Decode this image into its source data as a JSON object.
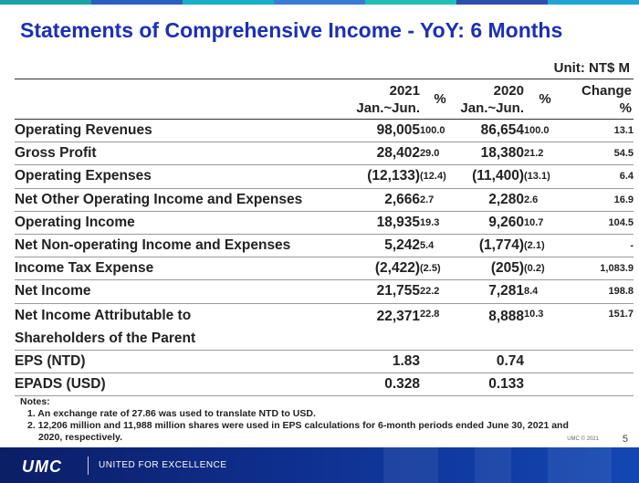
{
  "colors": {
    "title": "#1c2fb5",
    "top_bar": [
      "#1aa3a3",
      "#2b5fc4",
      "#16b0c8",
      "#3a7bd5",
      "#20c1b5",
      "#2c4fae",
      "#1fa6d0"
    ],
    "footer": "#0f2f8f"
  },
  "title": "Statements of Comprehensive Income - YoY: 6 Months",
  "unit": "Unit: NT$ M",
  "headers": {
    "col2021_year": "2021",
    "col2021_period": "Jan.~Jun.",
    "pct": "%",
    "col2020_year": "2020",
    "col2020_period": "Jan.~Jun.",
    "change_line1": "Change",
    "change_line2": "%"
  },
  "rows": [
    {
      "label": "Operating Revenues",
      "v2021": "98,005",
      "p2021": "100.0",
      "v2020": "86,654",
      "p2020": "100.0",
      "change": "13.1"
    },
    {
      "label": "Gross Profit",
      "v2021": "28,402",
      "p2021": "29.0",
      "v2020": "18,380",
      "p2020": "21.2",
      "change": "54.5"
    },
    {
      "label": "Operating Expenses",
      "v2021": "(12,133)",
      "p2021": "(12.4)",
      "v2020": "(11,400)",
      "p2020": "(13.1)",
      "change": "6.4"
    },
    {
      "label": "Net Other Operating Income and Expenses",
      "v2021": "2,666",
      "p2021": "2.7",
      "v2020": "2,280",
      "p2020": "2.6",
      "change": "16.9"
    },
    {
      "label": "Operating Income",
      "v2021": "18,935",
      "p2021": "19.3",
      "v2020": "9,260",
      "p2020": "10.7",
      "change": "104.5"
    },
    {
      "label": "Net Non-operating Income and Expenses",
      "v2021": "5,242",
      "p2021": "5.4",
      "v2020": "(1,774)",
      "p2020": "(2.1)",
      "change": "-"
    },
    {
      "label": "Income Tax Expense",
      "v2021": "(2,422)",
      "p2021": "(2.5)",
      "v2020": "(205)",
      "p2020": "(0.2)",
      "change": "1,083.9"
    },
    {
      "label": "Net Income",
      "v2021": "21,755",
      "p2021": "22.2",
      "v2020": "7,281",
      "p2020": "8.4",
      "change": "198.8"
    },
    {
      "label_line1": "Net Income Attributable to",
      "label_line2": "Shareholders of the Parent",
      "v2021": "22,371",
      "p2021": "22.8",
      "v2020": "8,888",
      "p2020": "10.3",
      "change": "151.7"
    },
    {
      "label": "EPS (NTD)",
      "v2021": "1.83",
      "p2021": "",
      "v2020": "0.74",
      "p2020": "",
      "change": ""
    },
    {
      "label": "EPADS (USD)",
      "v2021": "0.328",
      "p2021": "",
      "v2020": "0.133",
      "p2020": "",
      "change": ""
    }
  ],
  "notes": {
    "heading": "Notes:",
    "items": [
      "1. An exchange rate of 27.86 was used to translate NTD to USD.",
      "2. 12,206 million and 11,988 million shares were used in EPS calculations for 6-month periods ended June 30, 2021 and",
      "2020, respectively."
    ]
  },
  "footer": {
    "logo": "UMC",
    "tagline": "UNITED FOR EXCELLENCE",
    "copyright": "UMC © 2021",
    "page_number": "5"
  }
}
